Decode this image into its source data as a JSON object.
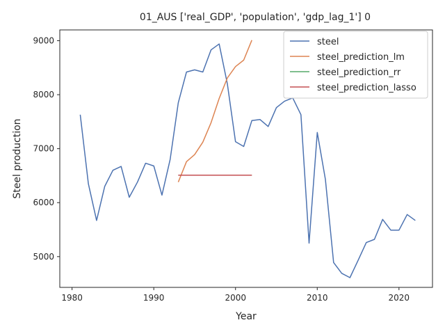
{
  "chart_data": {
    "type": "line",
    "title": "01_AUS ['real_GDP', 'population', 'gdp_lag_1'] 0",
    "xlabel": "Year",
    "ylabel": "Steel production",
    "xlim": [
      1978.5,
      2024.1
    ],
    "ylim": [
      4430,
      9200
    ],
    "xticks": [
      1980,
      1990,
      2000,
      2010,
      2020
    ],
    "yticks": [
      5000,
      6000,
      7000,
      8000,
      9000
    ],
    "grid": false,
    "legend_position": "top-right",
    "series": [
      {
        "name": "steel",
        "color": "#4c72b0",
        "x": [
          1981,
          1982,
          1983,
          1984,
          1985,
          1986,
          1987,
          1988,
          1989,
          1990,
          1991,
          1992,
          1993,
          1994,
          1995,
          1996,
          1997,
          1998,
          1999,
          2000,
          2001,
          2002,
          2003,
          2004,
          2005,
          2006,
          2007,
          2008,
          2009,
          2010,
          2011,
          2012,
          2013,
          2014,
          2015,
          2016,
          2017,
          2018,
          2019,
          2020,
          2021,
          2022
        ],
        "y": [
          7630,
          6350,
          5670,
          6300,
          6600,
          6670,
          6100,
          6380,
          6730,
          6680,
          6140,
          6800,
          7850,
          8420,
          8460,
          8420,
          8830,
          8940,
          8200,
          7130,
          7040,
          7520,
          7540,
          7410,
          7760,
          7880,
          7940,
          7630,
          5250,
          7300,
          6430,
          4890,
          4690,
          4610,
          4930,
          5260,
          5320,
          5690,
          5490,
          5490,
          5780,
          5670
        ]
      },
      {
        "name": "steel_prediction_lm",
        "color": "#dd8452",
        "x": [
          1993,
          1994,
          1995,
          1996,
          1997,
          1998,
          1999,
          2000,
          2001,
          2002
        ],
        "y": [
          6380,
          6760,
          6890,
          7120,
          7480,
          7930,
          8310,
          8520,
          8640,
          9010
        ]
      },
      {
        "name": "steel_prediction_rr",
        "color": "#55a868",
        "x": [
          1993,
          1994,
          1995,
          1996,
          1997,
          1998,
          1999,
          2000,
          2001,
          2002
        ],
        "y": [
          6510,
          6510,
          6510,
          6510,
          6510,
          6510,
          6510,
          6510,
          6510,
          6510
        ]
      },
      {
        "name": "steel_prediction_lasso",
        "color": "#c44e52",
        "x": [
          1993,
          1994,
          1995,
          1996,
          1997,
          1998,
          1999,
          2000,
          2001,
          2002
        ],
        "y": [
          6510,
          6510,
          6510,
          6510,
          6510,
          6510,
          6510,
          6510,
          6510,
          6510
        ]
      }
    ]
  }
}
